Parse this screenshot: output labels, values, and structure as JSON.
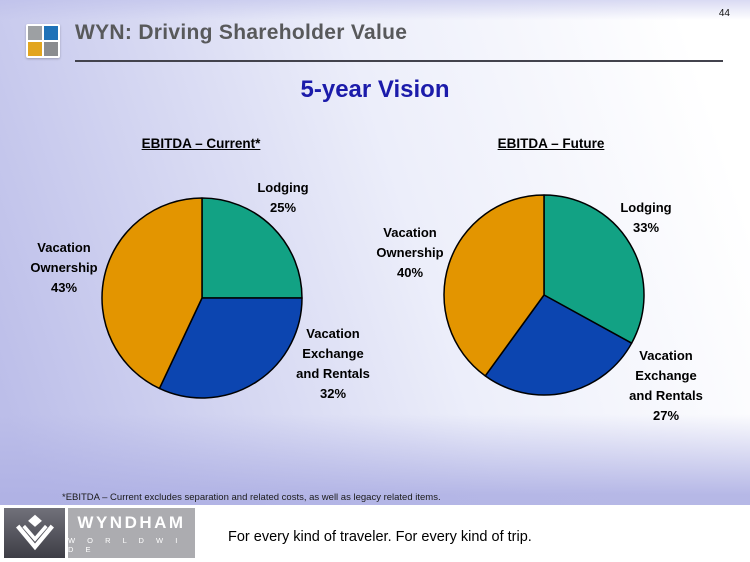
{
  "page_number": "44",
  "header": {
    "title": "WYN: Driving Shareholder Value"
  },
  "subtitle": "5-year Vision",
  "footnote": "*EBITDA – Current excludes separation and related costs, as well as legacy related items.",
  "footer": {
    "brand_name": "WYNDHAM",
    "brand_sub": "W O R L D W I D E",
    "tagline": "For every kind of traveler. For every kind of trip."
  },
  "colors": {
    "lodging_green": "#12a284",
    "exchange_blue": "#0c45b0",
    "ownership_orange": "#e39500",
    "heading_blue": "#1b1baa",
    "title_gray": "#58595b"
  },
  "chart_data": [
    {
      "type": "pie",
      "title": "EBITDA – Current*",
      "start_angle_deg": 0,
      "direction": "clockwise",
      "slices": [
        {
          "label": "Lodging",
          "value": 25,
          "color": "#12a284",
          "label_lines": [
            "Lodging",
            "25%"
          ]
        },
        {
          "label": "Vacation Exchange and Rentals",
          "value": 32,
          "color": "#0c45b0",
          "label_lines": [
            "Vacation",
            "Exchange",
            "and Rentals",
            "32%"
          ]
        },
        {
          "label": "Vacation Ownership",
          "value": 43,
          "color": "#e39500",
          "label_lines": [
            "Vacation",
            "Ownership",
            "43%"
          ]
        }
      ]
    },
    {
      "type": "pie",
      "title": "EBITDA – Future",
      "start_angle_deg": 0,
      "direction": "clockwise",
      "slices": [
        {
          "label": "Lodging",
          "value": 33,
          "color": "#12a284",
          "label_lines": [
            "Lodging",
            "33%"
          ]
        },
        {
          "label": "Vacation Exchange and Rentals",
          "value": 27,
          "color": "#0c45b0",
          "label_lines": [
            "Vacation",
            "Exchange",
            "and Rentals",
            "27%"
          ]
        },
        {
          "label": "Vacation Ownership",
          "value": 40,
          "color": "#e39500",
          "label_lines": [
            "Vacation",
            "Ownership",
            "40%"
          ]
        }
      ]
    }
  ]
}
